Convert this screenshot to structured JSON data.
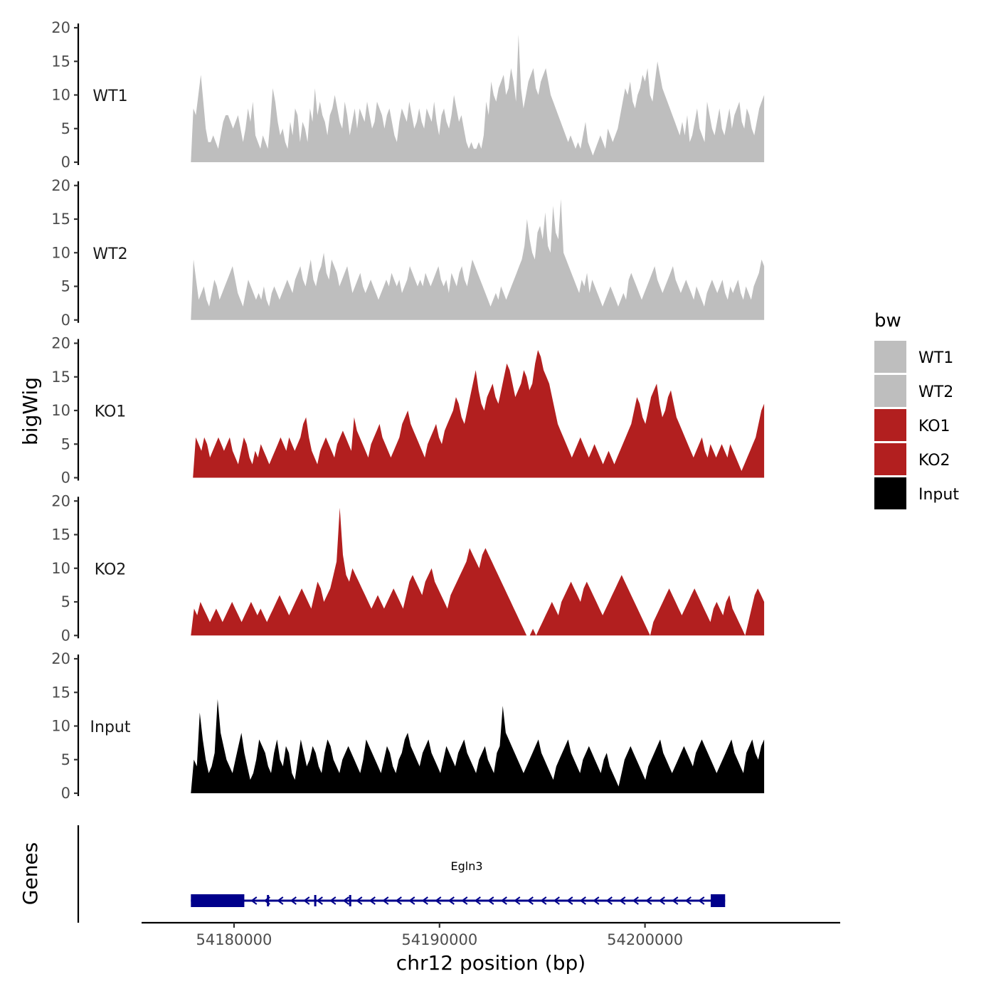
{
  "chart_data": {
    "type": "area",
    "title": "",
    "ylabel": "bigWig",
    "xlabel": "chr12 position (bp)",
    "ylim": [
      0,
      20
    ],
    "yticks": [
      "0",
      "5",
      "10",
      "15",
      "20"
    ],
    "xlim": [
      54175500,
      54209500
    ],
    "xticks": [
      {
        "value": 54180000,
        "label": "54180000"
      },
      {
        "value": 54190000,
        "label": "54190000"
      },
      {
        "value": 54200000,
        "label": "54200000"
      }
    ],
    "legend": {
      "title": "bw",
      "position": "right",
      "entries": [
        {
          "label": "WT1",
          "color": "#bebebe"
        },
        {
          "label": "WT2",
          "color": "#bebebe"
        },
        {
          "label": "KO1",
          "color": "#b21f1f"
        },
        {
          "label": "KO2",
          "color": "#b21f1f"
        },
        {
          "label": "Input",
          "color": "#000000"
        }
      ]
    },
    "series": [
      {
        "name": "WT1",
        "color": "#bebebe",
        "x_start": 54177900,
        "x_end": 54205800,
        "values": [
          0,
          8,
          7,
          10,
          13,
          9,
          5,
          3,
          3,
          4,
          3,
          2,
          4,
          6,
          7,
          7,
          6,
          5,
          6,
          7,
          5,
          3,
          5,
          8,
          6,
          9,
          4,
          3,
          2,
          4,
          3,
          2,
          6,
          11,
          9,
          6,
          4,
          5,
          3,
          2,
          6,
          4,
          8,
          7,
          3,
          6,
          5,
          3,
          8,
          6,
          11,
          7,
          9,
          7,
          6,
          4,
          7,
          8,
          10,
          8,
          6,
          5,
          9,
          7,
          4,
          6,
          8,
          5,
          8,
          7,
          6,
          9,
          7,
          5,
          6,
          9,
          8,
          7,
          5,
          7,
          8,
          6,
          4,
          3,
          6,
          8,
          7,
          6,
          9,
          7,
          5,
          6,
          8,
          6,
          5,
          8,
          7,
          6,
          9,
          6,
          4,
          7,
          8,
          6,
          5,
          7,
          10,
          8,
          6,
          7,
          5,
          3,
          2,
          3,
          2,
          2,
          3,
          2,
          4,
          9,
          7,
          12,
          10,
          9,
          11,
          12,
          13,
          10,
          11,
          14,
          12,
          9,
          19,
          11,
          8,
          10,
          12,
          13,
          14,
          11,
          10,
          12,
          13,
          14,
          12,
          10,
          9,
          8,
          7,
          6,
          5,
          4,
          3,
          4,
          3,
          2,
          3,
          2,
          4,
          6,
          3,
          2,
          1,
          2,
          3,
          4,
          3,
          2,
          5,
          4,
          3,
          4,
          5,
          7,
          9,
          11,
          10,
          12,
          9,
          8,
          10,
          11,
          13,
          12,
          14,
          10,
          9,
          12,
          15,
          13,
          11,
          10,
          9,
          8,
          7,
          6,
          5,
          4,
          6,
          4,
          7,
          3,
          4,
          6,
          8,
          5,
          4,
          3,
          9,
          7,
          5,
          4,
          6,
          8,
          5,
          4,
          6,
          8,
          5,
          7,
          8,
          9,
          6,
          5,
          8,
          7,
          5,
          4,
          6,
          8,
          9,
          10
        ]
      },
      {
        "name": "WT2",
        "color": "#bebebe",
        "x_start": 54177900,
        "x_end": 54205800,
        "values": [
          0,
          9,
          6,
          3,
          4,
          5,
          3,
          2,
          4,
          6,
          5,
          3,
          4,
          5,
          6,
          7,
          8,
          6,
          4,
          3,
          2,
          4,
          6,
          5,
          4,
          3,
          4,
          3,
          5,
          3,
          2,
          4,
          5,
          4,
          3,
          4,
          5,
          6,
          5,
          4,
          6,
          7,
          8,
          6,
          5,
          7,
          9,
          6,
          5,
          7,
          8,
          10,
          7,
          6,
          9,
          8,
          7,
          5,
          6,
          7,
          8,
          6,
          4,
          5,
          6,
          7,
          5,
          4,
          5,
          6,
          5,
          4,
          3,
          4,
          5,
          6,
          5,
          7,
          6,
          5,
          6,
          4,
          5,
          6,
          8,
          7,
          6,
          5,
          6,
          5,
          7,
          6,
          5,
          6,
          7,
          8,
          6,
          5,
          6,
          4,
          7,
          6,
          5,
          7,
          8,
          6,
          5,
          7,
          9,
          8,
          7,
          6,
          5,
          4,
          3,
          2,
          3,
          4,
          3,
          5,
          4,
          3,
          4,
          5,
          6,
          7,
          8,
          9,
          11,
          15,
          12,
          10,
          9,
          13,
          14,
          12,
          16,
          11,
          10,
          17,
          13,
          12,
          18,
          10,
          9,
          8,
          7,
          6,
          5,
          4,
          6,
          5,
          7,
          4,
          6,
          5,
          4,
          3,
          2,
          3,
          4,
          5,
          4,
          3,
          2,
          3,
          4,
          3,
          6,
          7,
          6,
          5,
          4,
          3,
          4,
          5,
          6,
          7,
          8,
          6,
          5,
          4,
          5,
          6,
          7,
          8,
          6,
          5,
          4,
          5,
          6,
          5,
          4,
          3,
          5,
          4,
          3,
          2,
          4,
          5,
          6,
          5,
          4,
          5,
          6,
          4,
          3,
          5,
          4,
          5,
          6,
          4,
          3,
          5,
          4,
          3,
          5,
          6,
          7,
          9,
          8
        ]
      },
      {
        "name": "KO1",
        "color": "#b21f1f",
        "x_start": 54178000,
        "x_end": 54205800,
        "values": [
          0,
          6,
          5,
          4,
          6,
          5,
          3,
          4,
          5,
          6,
          5,
          4,
          5,
          6,
          4,
          3,
          2,
          4,
          6,
          5,
          3,
          2,
          4,
          3,
          5,
          4,
          3,
          2,
          3,
          4,
          5,
          6,
          5,
          4,
          6,
          5,
          4,
          5,
          6,
          8,
          9,
          6,
          4,
          3,
          2,
          4,
          5,
          6,
          5,
          4,
          3,
          5,
          6,
          7,
          6,
          5,
          4,
          9,
          7,
          6,
          5,
          4,
          3,
          5,
          6,
          7,
          8,
          6,
          5,
          4,
          3,
          4,
          5,
          6,
          8,
          9,
          10,
          8,
          7,
          6,
          5,
          4,
          3,
          5,
          6,
          7,
          8,
          6,
          5,
          7,
          8,
          9,
          10,
          12,
          11,
          9,
          8,
          10,
          12,
          14,
          16,
          13,
          11,
          10,
          12,
          13,
          14,
          12,
          11,
          13,
          15,
          17,
          16,
          14,
          12,
          13,
          14,
          16,
          15,
          13,
          14,
          17,
          19,
          18,
          16,
          15,
          14,
          12,
          10,
          8,
          7,
          6,
          5,
          4,
          3,
          4,
          5,
          6,
          5,
          4,
          3,
          4,
          5,
          4,
          3,
          2,
          3,
          4,
          3,
          2,
          3,
          4,
          5,
          6,
          7,
          8,
          10,
          12,
          11,
          9,
          8,
          10,
          12,
          13,
          14,
          11,
          9,
          10,
          12,
          13,
          11,
          9,
          8,
          7,
          6,
          5,
          4,
          3,
          4,
          5,
          6,
          4,
          3,
          5,
          4,
          3,
          4,
          5,
          4,
          3,
          5,
          4,
          3,
          2,
          1,
          2,
          3,
          4,
          5,
          6,
          8,
          10,
          11
        ]
      },
      {
        "name": "KO2",
        "color": "#b21f1f",
        "x_start": 54177900,
        "x_end": 54205800,
        "values": [
          0,
          4,
          3,
          5,
          4,
          3,
          2,
          3,
          4,
          3,
          2,
          3,
          4,
          5,
          4,
          3,
          2,
          3,
          4,
          5,
          4,
          3,
          4,
          3,
          2,
          3,
          4,
          5,
          6,
          5,
          4,
          3,
          4,
          5,
          6,
          7,
          6,
          5,
          4,
          6,
          8,
          7,
          5,
          6,
          7,
          9,
          11,
          19,
          12,
          9,
          8,
          10,
          9,
          8,
          7,
          6,
          5,
          4,
          5,
          6,
          5,
          4,
          5,
          6,
          7,
          6,
          5,
          4,
          6,
          8,
          9,
          8,
          7,
          6,
          8,
          9,
          10,
          8,
          7,
          6,
          5,
          4,
          6,
          7,
          8,
          9,
          10,
          11,
          13,
          12,
          11,
          10,
          12,
          13,
          12,
          11,
          10,
          9,
          8,
          7,
          6,
          5,
          4,
          3,
          2,
          1,
          0,
          0,
          1,
          0,
          1,
          2,
          3,
          4,
          5,
          4,
          3,
          5,
          6,
          7,
          8,
          7,
          6,
          5,
          7,
          8,
          7,
          6,
          5,
          4,
          3,
          4,
          5,
          6,
          7,
          8,
          9,
          8,
          7,
          6,
          5,
          4,
          3,
          2,
          1,
          0,
          2,
          3,
          4,
          5,
          6,
          7,
          6,
          5,
          4,
          3,
          4,
          5,
          6,
          7,
          6,
          5,
          4,
          3,
          2,
          4,
          5,
          4,
          3,
          5,
          6,
          4,
          3,
          2,
          1,
          0,
          2,
          4,
          6,
          7,
          6,
          5
        ]
      },
      {
        "name": "Input",
        "color": "#000000",
        "x_start": 54177900,
        "x_end": 54205800,
        "values": [
          0,
          5,
          4,
          12,
          8,
          5,
          3,
          4,
          6,
          14,
          9,
          7,
          5,
          4,
          3,
          5,
          7,
          9,
          6,
          4,
          2,
          3,
          5,
          8,
          7,
          6,
          4,
          3,
          6,
          8,
          5,
          4,
          7,
          6,
          3,
          2,
          5,
          8,
          6,
          4,
          5,
          7,
          6,
          4,
          3,
          6,
          8,
          7,
          5,
          4,
          3,
          5,
          6,
          7,
          6,
          5,
          4,
          3,
          5,
          8,
          7,
          6,
          5,
          4,
          3,
          5,
          7,
          6,
          4,
          3,
          5,
          6,
          8,
          9,
          7,
          6,
          5,
          4,
          6,
          7,
          8,
          6,
          5,
          4,
          3,
          5,
          7,
          6,
          5,
          4,
          6,
          7,
          8,
          6,
          5,
          4,
          3,
          5,
          6,
          7,
          5,
          4,
          3,
          6,
          7,
          13,
          9,
          8,
          7,
          6,
          5,
          4,
          3,
          4,
          5,
          6,
          7,
          8,
          6,
          5,
          4,
          3,
          2,
          4,
          5,
          6,
          7,
          8,
          6,
          5,
          4,
          3,
          5,
          6,
          7,
          6,
          5,
          4,
          3,
          5,
          6,
          4,
          3,
          2,
          1,
          3,
          5,
          6,
          7,
          6,
          5,
          4,
          3,
          2,
          4,
          5,
          6,
          7,
          8,
          6,
          5,
          4,
          3,
          4,
          5,
          6,
          7,
          6,
          5,
          4,
          6,
          7,
          8,
          7,
          6,
          5,
          4,
          3,
          4,
          5,
          6,
          7,
          8,
          6,
          5,
          4,
          3,
          6,
          7,
          8,
          6,
          5,
          7,
          8
        ]
      }
    ],
    "genes": [
      {
        "name": "Egln3",
        "start": 54177900,
        "end": 54203900,
        "strand": "-",
        "exons": [
          [
            54177900,
            54180500
          ],
          [
            54181600,
            54181700
          ],
          [
            54183900,
            54184000
          ],
          [
            54185600,
            54185700
          ],
          [
            54203200,
            54203900
          ]
        ]
      }
    ],
    "genes_track_label": "Genes",
    "colors": {
      "axis": "#000000",
      "tick_text": "#4d4d4d",
      "gene": "#00008b"
    }
  }
}
